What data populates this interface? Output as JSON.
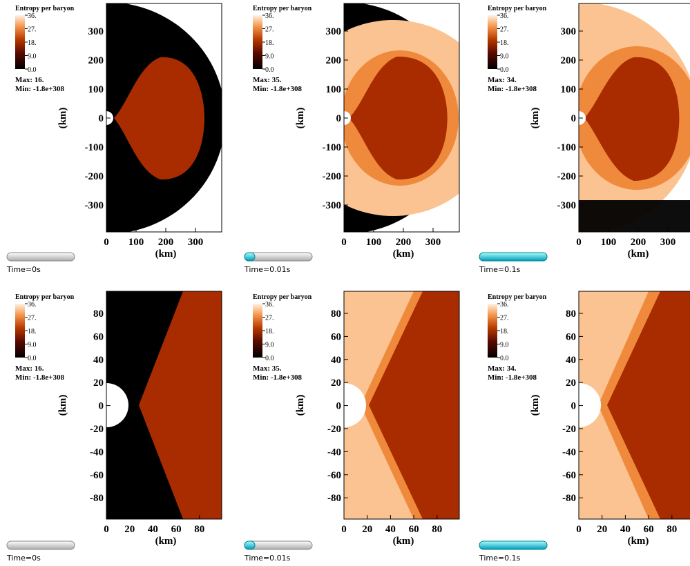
{
  "panels": [
    {
      "legend": {
        "title": "Entropy per baryon",
        "ticks": [
          "36.",
          "27.",
          "18.",
          "9.0",
          "0.0"
        ],
        "max": "Max:  16.",
        "min": "Min: -1.8e+308"
      },
      "yticks": [
        300,
        200,
        100,
        0,
        -100,
        -200,
        -300
      ],
      "xticks": [
        0,
        100,
        200,
        300
      ],
      "xlabel": "(km)",
      "ylabel": "(km)",
      "time": "Time=0s"
    },
    {
      "legend": {
        "title": "Entropy per baryon",
        "ticks": [
          "36.",
          "27.",
          "18.",
          "9.0",
          "0.0"
        ],
        "max": "Max:  35.",
        "min": "Min: -1.8e+308"
      },
      "yticks": [
        300,
        200,
        100,
        0,
        -100,
        -200,
        -300
      ],
      "xticks": [
        0,
        100,
        200,
        300
      ],
      "xlabel": "(km)",
      "ylabel": "(km)",
      "time": "Time=0.01s"
    },
    {
      "legend": {
        "title": "Entropy per baryon",
        "ticks": [
          "36.",
          "27.",
          "18.",
          "9.0",
          "0.0"
        ],
        "max": "Max:  34.",
        "min": "Min: -1.8e+308"
      },
      "yticks": [
        300,
        200,
        100,
        0,
        -100,
        -200,
        -300
      ],
      "xticks": [
        0,
        100,
        200,
        300
      ],
      "xlabel": "(km)",
      "ylabel": "(km)",
      "time": "Time=0.1s"
    },
    {
      "legend": {
        "title": "Entropy per baryon",
        "ticks": [
          "36.",
          "27.",
          "18.",
          "9.0",
          "0.0"
        ],
        "max": "Max:  16.",
        "min": "Min: -1.8e+308"
      },
      "yticks": [
        80,
        60,
        40,
        20,
        0,
        -20,
        -40,
        -60,
        -80
      ],
      "xticks": [
        0,
        20,
        40,
        60,
        80
      ],
      "xlabel": "(km)",
      "ylabel": "(km)",
      "time": "Time=0s"
    },
    {
      "legend": {
        "title": "Entropy per baryon",
        "ticks": [
          "36.",
          "27.",
          "18.",
          "9.0",
          "0.0"
        ],
        "max": "Max:  35.",
        "min": "Min: -1.8e+308"
      },
      "yticks": [
        80,
        60,
        40,
        20,
        0,
        -20,
        -40,
        -60,
        -80
      ],
      "xticks": [
        0,
        20,
        40,
        60,
        80
      ],
      "xlabel": "(km)",
      "ylabel": "(km)",
      "time": "Time=0.01s"
    },
    {
      "legend": {
        "title": "Entropy per baryon",
        "ticks": [
          "36.",
          "27.",
          "18.",
          "9.0",
          "0.0"
        ],
        "max": "Max:  34.",
        "min": "Min: -1.8e+308"
      },
      "yticks": [
        80,
        60,
        40,
        20,
        0,
        -20,
        -40,
        -60,
        -80
      ],
      "xticks": [
        0,
        20,
        40,
        60,
        80
      ],
      "xlabel": "(km)",
      "ylabel": "(km)",
      "time": "Time=0.1s"
    }
  ]
}
